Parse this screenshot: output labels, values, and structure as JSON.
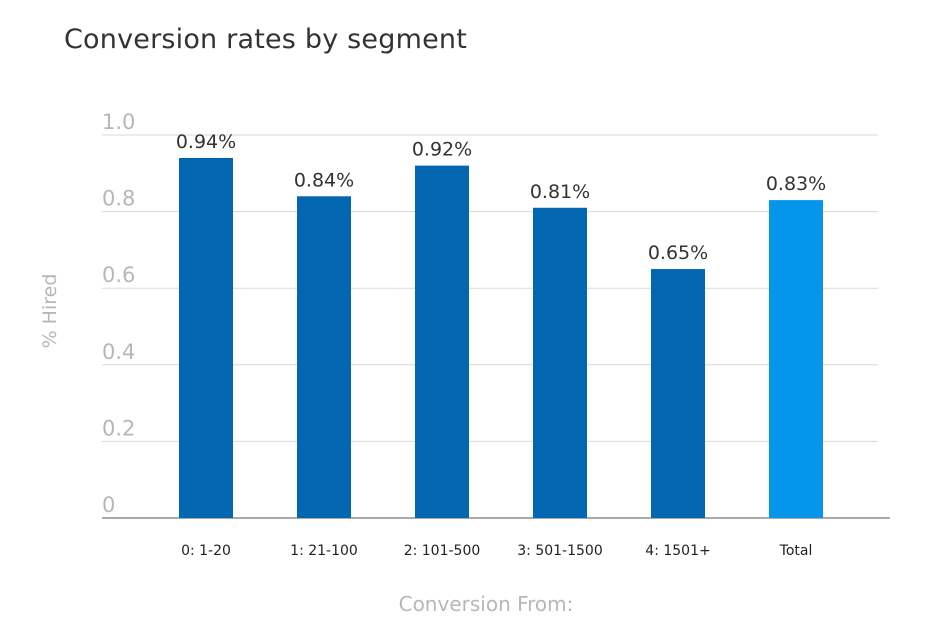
{
  "chart_data": {
    "type": "bar",
    "title": "Conversion rates by segment",
    "xlabel": "Conversion From:",
    "ylabel": "% Hired",
    "ylim": [
      0,
      1.0
    ],
    "yticks": [
      "0",
      "0.2",
      "0.4",
      "0.6",
      "0.8",
      "1.0"
    ],
    "grid": true,
    "categories": [
      "0: 1-20",
      "1: 21-100",
      "2: 101-500",
      "3: 501-1500",
      "4: 1501+",
      "Total"
    ],
    "values": [
      0.94,
      0.84,
      0.92,
      0.81,
      0.65,
      0.83
    ],
    "data_labels": [
      "0.94%",
      "0.84%",
      "0.92%",
      "0.81%",
      "0.65%",
      "0.83%"
    ],
    "bar_colors": [
      "#0366B0",
      "#0366B0",
      "#0366B0",
      "#0366B0",
      "#0366B0",
      "#0595EA"
    ]
  },
  "colors": {
    "title": "#333333",
    "axis_text": "#b7b7b7",
    "grid": "#d9d9d9",
    "baseline": "#aaaaaa",
    "data_label": "#333333",
    "category_label": "#222222"
  }
}
